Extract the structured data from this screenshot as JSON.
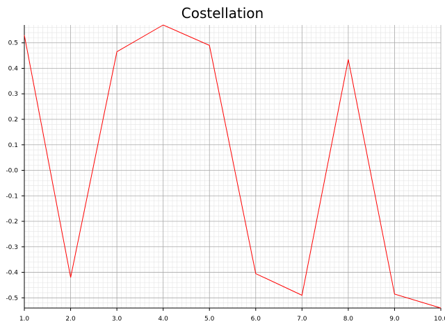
{
  "chart_data": {
    "type": "line",
    "title": "Costellation",
    "xlabel": "",
    "ylabel": "",
    "xlim": [
      1.0,
      10.0
    ],
    "ylim": [
      -0.54,
      0.57
    ],
    "grid": true,
    "minor_grid": true,
    "x": [
      1.0,
      2.0,
      3.0,
      4.0,
      5.0,
      6.0,
      7.0,
      8.0,
      9.0,
      10.0
    ],
    "series": [
      {
        "color": "#ff0000",
        "values": [
          0.53,
          -0.42,
          0.465,
          0.57,
          0.49,
          -0.405,
          -0.49,
          0.435,
          -0.485,
          -0.54
        ]
      }
    ],
    "x_ticks": [
      1.0,
      2.0,
      3.0,
      4.0,
      5.0,
      6.0,
      7.0,
      8.0,
      9.0,
      10.0
    ],
    "x_tick_labels": [
      "1.0",
      "2.0",
      "3.0",
      "4.0",
      "5.0",
      "6.0",
      "7.0",
      "8.0",
      "9.0",
      "10.0"
    ],
    "y_ticks": [
      0.5,
      0.4,
      0.3,
      0.2,
      0.1,
      0.0,
      -0.1,
      -0.2,
      -0.3,
      -0.4,
      -0.5
    ],
    "y_tick_labels": [
      "0.5",
      "0.4",
      "0.3",
      "0.2",
      "0.1",
      "-0.0",
      "-0.1",
      "-0.2",
      "-0.3",
      "-0.4",
      "-0.5"
    ],
    "colors": {
      "line": "#ff0000",
      "major_grid": "#a8a8a8",
      "minor_grid": "#e4e4e4",
      "axis": "#000000"
    }
  }
}
